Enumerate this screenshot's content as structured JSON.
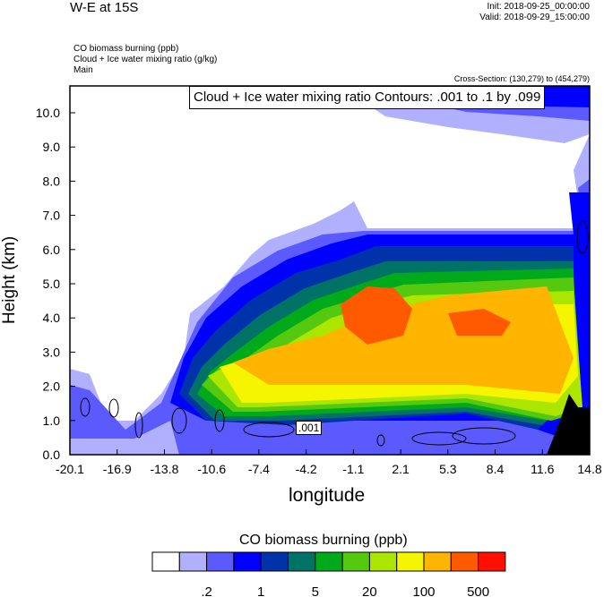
{
  "header": {
    "title": "W-E at 15S",
    "init": "Init: 2018-09-25_00:00:00",
    "valid": "Valid: 2018-09-29_15:00:00",
    "fields": [
      "CO biomass burning   (ppb)",
      "Cloud + Ice water mixing ratio    (g/kg)",
      "Main"
    ],
    "cross_section": "Cross-Section: (130,279) to (454,279)"
  },
  "chart_data": {
    "type": "heatmap",
    "title": "W-E at 15S",
    "xlabel": "longitude",
    "ylabel": "Height (km)",
    "xlim": [
      -20.1,
      14.8
    ],
    "ylim": [
      0,
      10.8
    ],
    "xticks": [
      "-20.1",
      "-16.9",
      "-13.8",
      "-10.6",
      "-7.4",
      "-4.2",
      "-1.1",
      "2.1",
      "5.3",
      "8.4",
      "11.6",
      "14.8"
    ],
    "yticks": [
      "0.0",
      "1.0",
      "2.0",
      "3.0",
      "4.0",
      "5.0",
      "6.0",
      "7.0",
      "8.0",
      "9.0",
      "10.0"
    ],
    "contour_annotation": "Cloud + Ice water mixing ratio Contours: .001 to .1 by .099",
    "contour_label": ".001",
    "colorbar": {
      "title": "CO biomass burning  (ppb)",
      "colors": [
        "#ffffff",
        "#b0b0ff",
        "#5a5aff",
        "#0000ff",
        "#0033aa",
        "#007366",
        "#00aa1a",
        "#55c810",
        "#aae600",
        "#f5f500",
        "#ffb400",
        "#ff5a00",
        "#ff1000"
      ],
      "labels": [
        ".2",
        "1",
        "5",
        "20",
        "100",
        "500"
      ]
    }
  }
}
